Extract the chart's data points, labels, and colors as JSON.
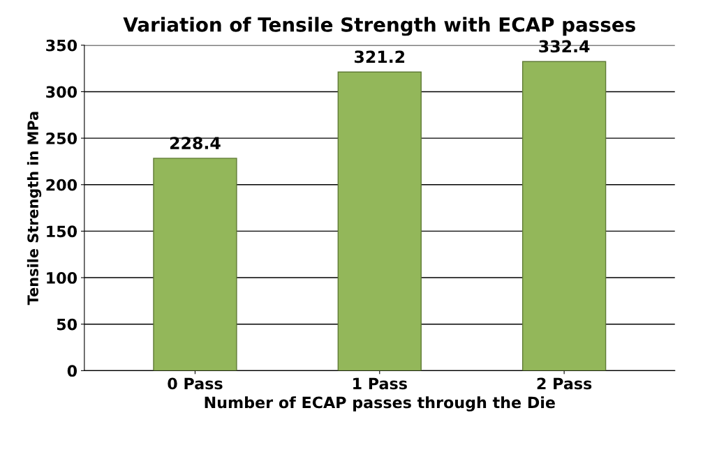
{
  "chart_data": {
    "type": "bar",
    "title": "Variation of Tensile Strength with ECAP passes",
    "xlabel": "Number of ECAP passes through the Die",
    "ylabel": "Tensile Strength in MPa",
    "categories": [
      "0 Pass",
      "1 Pass",
      "2 Pass"
    ],
    "values": [
      228.4,
      321.2,
      332.4
    ],
    "color": "#93b75a",
    "ylim": [
      0,
      350
    ],
    "yticks": [
      0,
      50,
      100,
      150,
      200,
      250,
      300,
      350
    ],
    "grid": "y",
    "data_labels": true
  }
}
